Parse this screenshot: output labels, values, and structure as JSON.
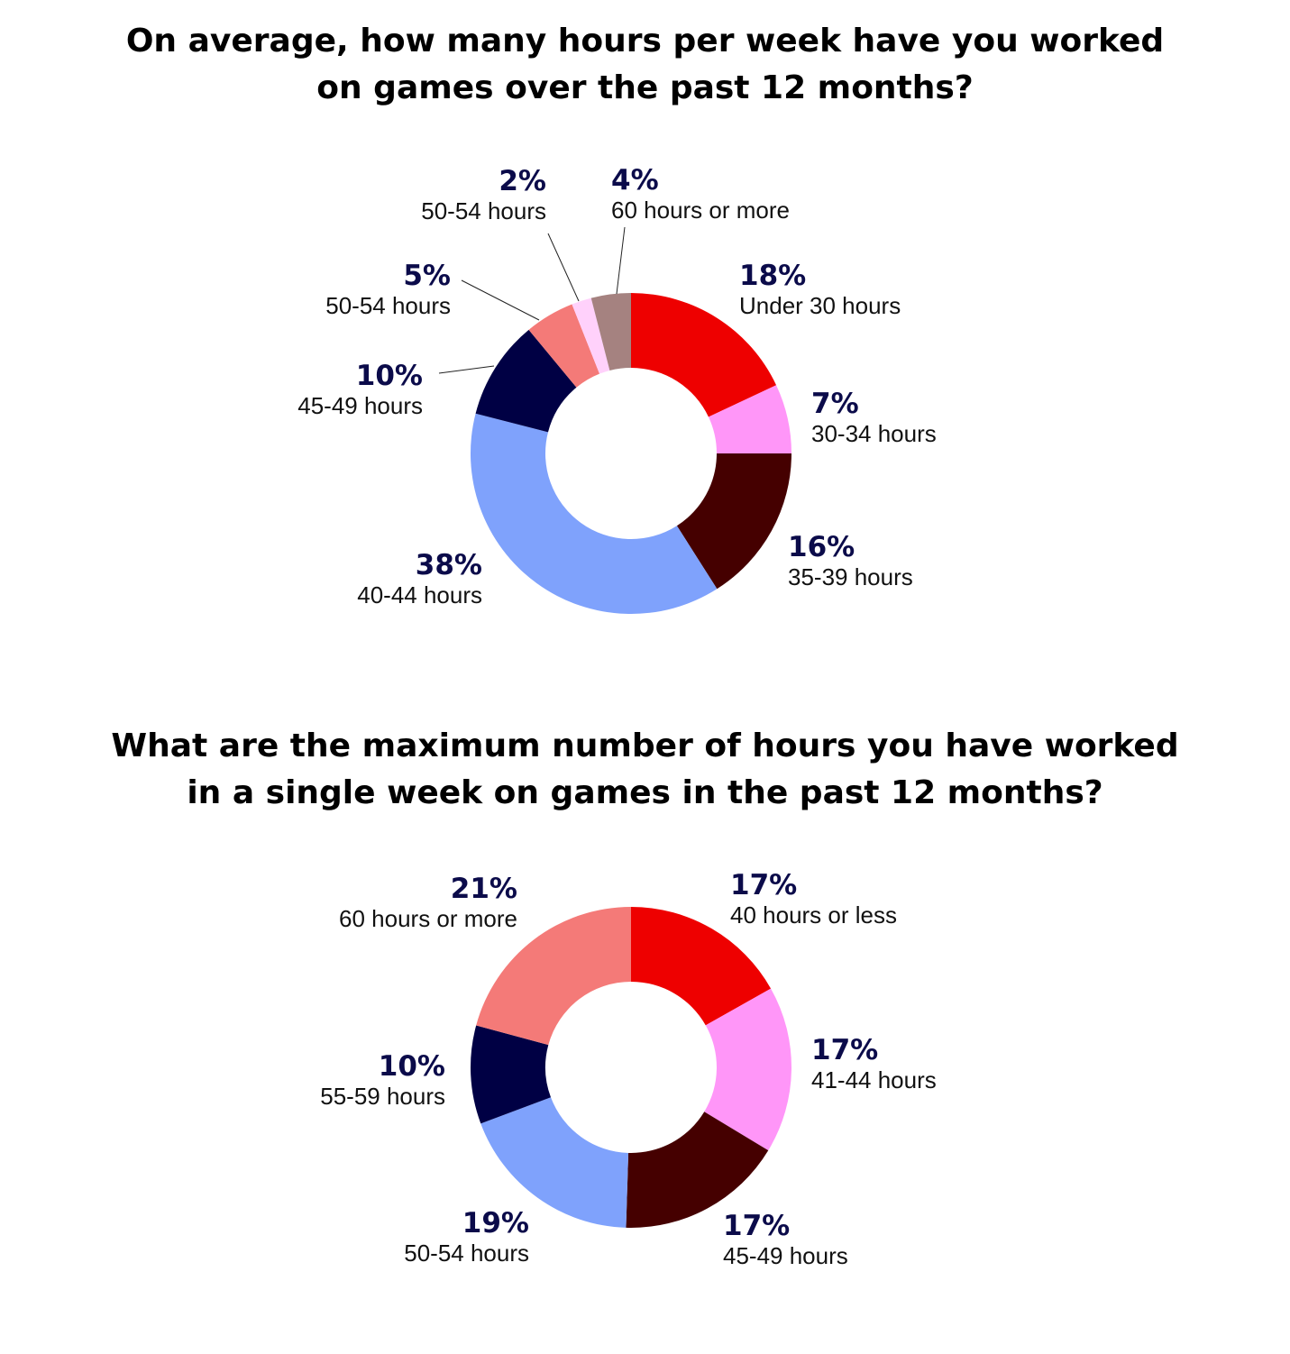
{
  "chart_data": [
    {
      "type": "pie",
      "title_lines": [
        "On average, how many hours per week have you worked",
        "on games over the past 12 months?"
      ],
      "slices": [
        {
          "label": "Under 30 hours",
          "value": 18,
          "value_label": "18%",
          "color": "#ee0000"
        },
        {
          "label": "30-34 hours",
          "value": 7,
          "value_label": "7%",
          "color": "#ff96f8"
        },
        {
          "label": "35-39 hours",
          "value": 16,
          "value_label": "16%",
          "color": "#450000"
        },
        {
          "label": "40-44 hours",
          "value": 38,
          "value_label": "38%",
          "color": "#7fa2fc"
        },
        {
          "label": "45-49 hours",
          "value": 10,
          "value_label": "10%",
          "color": "#000044"
        },
        {
          "label": "50-54 hours",
          "value": 5,
          "value_label": "5%",
          "color": "#f47a78"
        },
        {
          "label": "50-54 hours",
          "value": 2,
          "value_label": "2%",
          "color": "#ffd1fb"
        },
        {
          "label": "60 hours or more",
          "value": 4,
          "value_label": "4%",
          "color": "#a58280"
        }
      ]
    },
    {
      "type": "pie",
      "title_lines": [
        "What are the maximum number of hours you have worked",
        "in a single week on games in the past 12 months?"
      ],
      "slices": [
        {
          "label": "40 hours or less",
          "value": 17,
          "value_label": "17%",
          "color": "#ee0000"
        },
        {
          "label": "41-44 hours",
          "value": 17,
          "value_label": "17%",
          "color": "#ff96f8"
        },
        {
          "label": "45-49 hours",
          "value": 17,
          "value_label": "17%",
          "color": "#450000"
        },
        {
          "label": "50-54 hours",
          "value": 19,
          "value_label": "19%",
          "color": "#7fa2fc"
        },
        {
          "label": "55-59 hours",
          "value": 10,
          "value_label": "10%",
          "color": "#000044"
        },
        {
          "label": "60 hours or more",
          "value": 21,
          "value_label": "21%",
          "color": "#f47a78"
        }
      ]
    }
  ]
}
